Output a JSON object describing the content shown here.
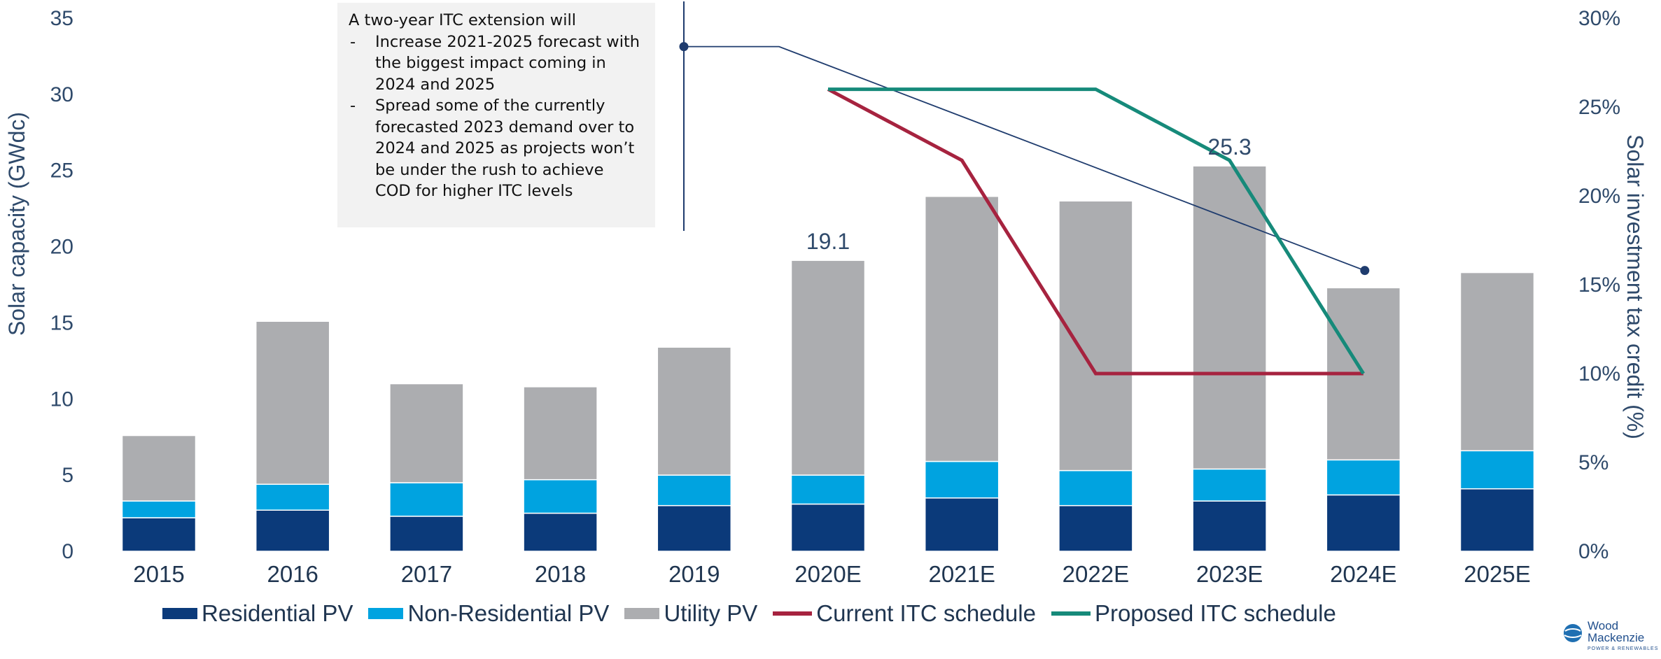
{
  "chart_data": {
    "type": "bar",
    "stacked": true,
    "categories": [
      "2015",
      "2016",
      "2017",
      "2018",
      "2019",
      "2020E",
      "2021E",
      "2022E",
      "2023E",
      "2024E",
      "2025E"
    ],
    "series": [
      {
        "name": "Residential PV",
        "color": "#0b3a7a",
        "values": [
          2.2,
          2.7,
          2.3,
          2.5,
          3.0,
          3.1,
          3.5,
          3.0,
          3.3,
          3.7,
          4.1
        ]
      },
      {
        "name": "Non-Residential PV",
        "color": "#00a3e0",
        "values": [
          1.1,
          1.7,
          2.2,
          2.2,
          2.0,
          1.9,
          2.4,
          2.3,
          2.1,
          2.3,
          2.5
        ]
      },
      {
        "name": "Utility PV",
        "color": "#acadb0",
        "values": [
          4.3,
          10.7,
          6.5,
          6.1,
          8.4,
          14.1,
          17.4,
          17.7,
          19.9,
          11.3,
          11.7
        ]
      }
    ],
    "lines": [
      {
        "name": "Current ITC schedule",
        "color": "#a6233f",
        "axis": "right",
        "x": [
          "2020E",
          "2021E",
          "2022E",
          "2023E",
          "2024E"
        ],
        "values": [
          26,
          22,
          10,
          10,
          10
        ]
      },
      {
        "name": "Proposed ITC schedule",
        "color": "#168a7a",
        "axis": "right",
        "x": [
          "2020E",
          "2021E",
          "2022E",
          "2023E",
          "2024E"
        ],
        "values": [
          26,
          26,
          26,
          22,
          10
        ]
      }
    ],
    "data_labels": [
      {
        "category": "2020E",
        "text": "19.1"
      },
      {
        "category": "2023E",
        "text": "25.3"
      }
    ],
    "ylabel": "Solar capacity (GWdc)",
    "ylim": [
      0,
      35
    ],
    "yticks": [
      "0",
      "5",
      "10",
      "15",
      "20",
      "25",
      "30",
      "35"
    ],
    "y2label": "Solar investment  tax credit (%)",
    "y2lim": [
      0,
      30
    ],
    "y2ticks": [
      "0%",
      "5%",
      "10%",
      "15%",
      "20%",
      "25%",
      "30%"
    ],
    "legend_position": "bottom",
    "grid": false
  },
  "annotation": {
    "title": "A two-year ITC extension will",
    "bullets": [
      {
        "dash": "-",
        "text": "Increase 2021-2025 forecast with the biggest impact coming in 2024 and 2025"
      },
      {
        "dash": "-",
        "text": "Spread some of the currently forecasted 2023 demand over to 2024 and 2025 as projects won’t be under  the rush to achieve COD for higher ITC levels"
      }
    ],
    "connector_color": "#1f3c6e"
  },
  "logo": {
    "line1": "Wood",
    "line2": "Mackenzie",
    "sub": "POWER & RENEWABLES"
  }
}
